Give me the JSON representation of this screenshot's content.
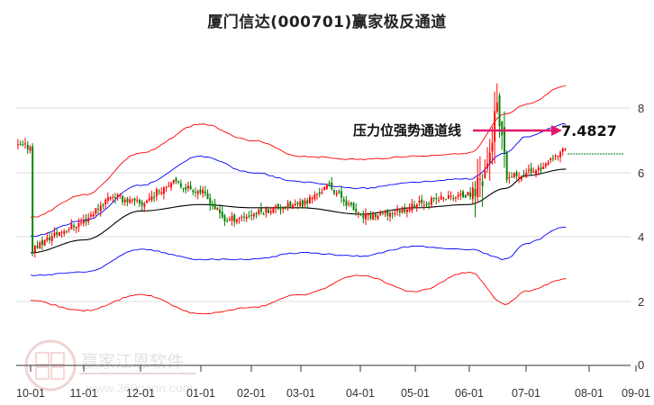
{
  "title": "厦门信达(000701)赢家极反通道",
  "annotation": {
    "label": "压力位强势通道线",
    "value": "7.4827",
    "arrow_color": "#e0196b"
  },
  "watermark": {
    "brand": "赢家江恩软件",
    "url": "www.360gann.com",
    "seal_chars": [
      "江",
      "赢",
      "恩",
      "家"
    ]
  },
  "colors": {
    "up": "#ff0000",
    "down": "#008000",
    "outer_band": "#ff0000",
    "inner_band": "#0000ff",
    "mid_line": "#000000",
    "last_price_line": "#008000",
    "grid": "#dddddd"
  },
  "chart_data": {
    "type": "candlestick_with_channels",
    "title": "厦门信达(000701)赢家极反通道",
    "xlabel": "",
    "ylabel": "",
    "ylim": [
      0,
      8
    ],
    "y_ticks": [
      "0",
      "2",
      "4",
      "6",
      "8"
    ],
    "x_ticks": [
      "10-01",
      "11-01",
      "12-01",
      "01-01",
      "02-01",
      "03-01",
      "04-01",
      "05-01",
      "06-01",
      "07-01",
      "08-01",
      "09-01"
    ],
    "grid": true,
    "legend": "none",
    "annotation": {
      "text": "压力位强势通道线",
      "value": 7.4827
    },
    "last_price": 6.8,
    "series": [
      {
        "name": "outer_upper_red",
        "x": [
          "10-01",
          "11-01",
          "12-01",
          "01-01",
          "02-01",
          "03-01",
          "04-01",
          "05-01",
          "06-01",
          "06-20",
          "07-01",
          "07-20"
        ],
        "values": [
          4.6,
          5.3,
          6.6,
          7.5,
          7.0,
          6.5,
          6.4,
          6.5,
          6.6,
          7.8,
          8.1,
          8.7
        ]
      },
      {
        "name": "inner_upper_blue",
        "x": [
          "10-01",
          "11-01",
          "12-01",
          "01-01",
          "02-01",
          "03-01",
          "04-01",
          "05-01",
          "06-01",
          "06-20",
          "07-01",
          "07-20"
        ],
        "values": [
          4.0,
          4.5,
          5.6,
          6.5,
          6.0,
          5.7,
          5.5,
          5.7,
          5.8,
          6.6,
          7.1,
          7.5
        ]
      },
      {
        "name": "mid_black",
        "x": [
          "10-01",
          "11-01",
          "12-01",
          "01-01",
          "02-01",
          "03-01",
          "04-01",
          "05-01",
          "06-01",
          "06-20",
          "07-01",
          "07-20"
        ],
        "values": [
          3.5,
          3.9,
          4.8,
          5.0,
          4.9,
          4.9,
          4.7,
          4.9,
          5.0,
          5.5,
          5.9,
          6.1
        ]
      },
      {
        "name": "inner_lower_blue",
        "x": [
          "10-01",
          "11-01",
          "12-01",
          "01-01",
          "02-01",
          "03-01",
          "04-01",
          "05-01",
          "06-01",
          "06-20",
          "07-01",
          "07-20"
        ],
        "values": [
          2.8,
          2.9,
          3.6,
          3.3,
          3.3,
          3.5,
          3.4,
          3.7,
          3.6,
          3.3,
          3.8,
          4.3
        ]
      },
      {
        "name": "outer_lower_red",
        "x": [
          "10-01",
          "11-01",
          "12-01",
          "01-01",
          "02-01",
          "03-01",
          "04-01",
          "05-01",
          "06-01",
          "06-20",
          "07-01",
          "07-20"
        ],
        "values": [
          2.0,
          1.7,
          2.2,
          1.6,
          1.8,
          2.2,
          2.8,
          2.3,
          2.9,
          1.9,
          2.3,
          2.7
        ]
      },
      {
        "name": "close_price",
        "x": [
          "10-01",
          "10-15",
          "11-01",
          "11-15",
          "12-01",
          "12-15",
          "01-01",
          "01-15",
          "02-01",
          "02-15",
          "03-01",
          "03-15",
          "04-01",
          "04-15",
          "05-01",
          "05-15",
          "06-01",
          "06-10",
          "06-15",
          "06-20",
          "07-01",
          "07-10",
          "07-20"
        ],
        "values": [
          3.6,
          4.1,
          4.5,
          5.3,
          5.0,
          5.7,
          5.4,
          4.5,
          4.7,
          4.9,
          5.0,
          5.6,
          4.6,
          4.7,
          5.0,
          5.2,
          5.3,
          6.2,
          8.0,
          5.8,
          6.0,
          6.2,
          6.8
        ]
      }
    ]
  }
}
